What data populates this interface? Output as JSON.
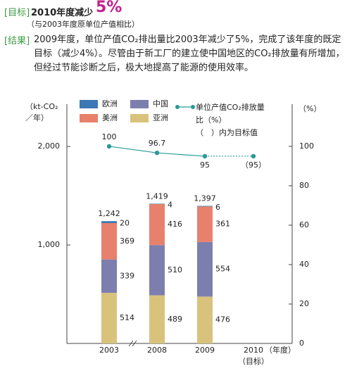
{
  "header": {
    "target_label": "[目标]",
    "target_text": "2010年度减少",
    "target_value": "5%",
    "target_note": "（与2003年度原单位产值相比）",
    "result_label": "[结果]",
    "result_text": "2009年度，单位产值CO₂排出量比2003年减少了5%，完成了该年度的既定目标（减少4%）。尽管由于新工厂的建立使中国地区的CO₂排放量有所增加，但经过节能诊断之后，极大地提高了能源的使用效率。"
  },
  "chart_data": {
    "type": "stacked_bar_line",
    "ylabel": "（kt-CO₂／年）",
    "y2label": "（%）",
    "xlabel": "（年度）",
    "categories": [
      "2003",
      "2008",
      "2009",
      "2010"
    ],
    "category_note": "（目标）",
    "series": [
      {
        "name": "亚洲",
        "color": "#d9c27c",
        "values": [
          514,
          489,
          476,
          null
        ]
      },
      {
        "name": "中国",
        "color": "#7c7fae",
        "values": [
          339,
          510,
          554,
          null
        ]
      },
      {
        "name": "美洲",
        "color": "#e8816b",
        "values": [
          369,
          416,
          361,
          null
        ]
      },
      {
        "name": "欧洲",
        "color": "#3b78b4",
        "values": [
          20,
          4,
          6,
          null
        ]
      }
    ],
    "totals": {
      "values": [
        1242,
        1419,
        1397,
        null
      ],
      "value_labels": [
        "1,242",
        "1,419",
        "1,397",
        null
      ]
    },
    "line": {
      "name": "单位产值CO₂排放量比（%）",
      "color": "#2a9b98",
      "axis": "y2",
      "values": [
        100,
        96.7,
        95,
        95
      ],
      "value_labels": [
        "100",
        "96.7",
        "95",
        "（95）"
      ]
    },
    "legend_note": "（　）内为目标值",
    "ylim": [
      0,
      2430
    ],
    "yticks": [
      {
        "value": 1000,
        "label": "1,000"
      },
      {
        "value": 2000,
        "label": "2,000"
      }
    ],
    "y2lim": [
      0,
      121.4
    ],
    "y2ticks": [
      0,
      20,
      40,
      60,
      80,
      100
    ]
  }
}
